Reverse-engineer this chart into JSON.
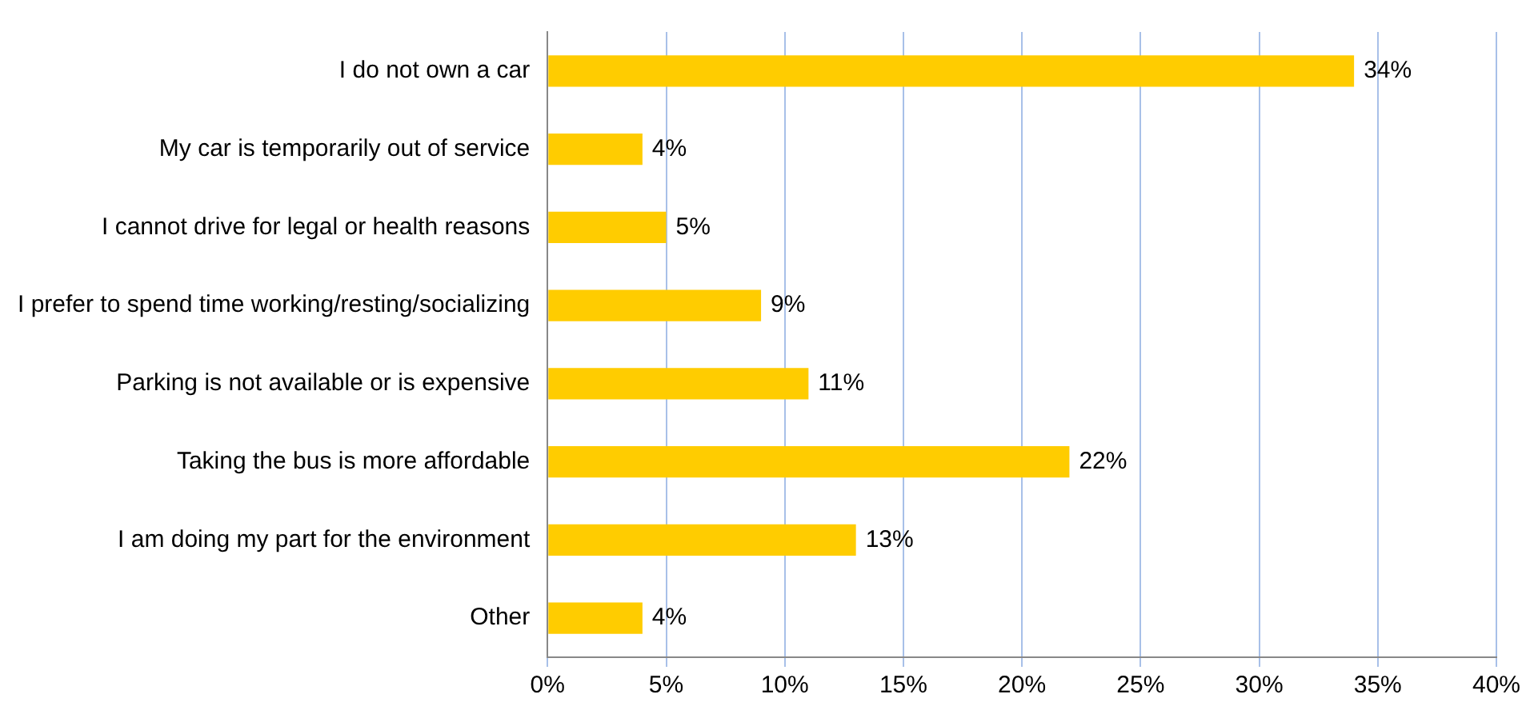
{
  "chart_data": {
    "type": "bar",
    "orientation": "horizontal",
    "categories": [
      "I do not own a car",
      "My car is temporarily out of service",
      "I cannot drive for legal or health reasons",
      "I prefer to spend time working/resting/socializing",
      "Parking is not available or is expensive",
      "Taking the bus is more affordable",
      "I am doing my part for the environment",
      "Other"
    ],
    "values": [
      34,
      4,
      5,
      9,
      11,
      22,
      13,
      4
    ],
    "value_labels": [
      "34%",
      "4%",
      "5%",
      "9%",
      "11%",
      "22%",
      "13%",
      "4%"
    ],
    "color": "#ffcc00",
    "xlim": [
      0,
      40
    ],
    "xticks": [
      {
        "value": 0,
        "label": "0%"
      },
      {
        "value": 5,
        "label": "5%"
      },
      {
        "value": 10,
        "label": "10%"
      },
      {
        "value": 15,
        "label": "15%"
      },
      {
        "value": 20,
        "label": "20%"
      },
      {
        "value": 25,
        "label": "25%"
      },
      {
        "value": 30,
        "label": "30%"
      },
      {
        "value": 35,
        "label": "35%"
      },
      {
        "value": 40,
        "label": "40%"
      }
    ],
    "grid": "x"
  }
}
